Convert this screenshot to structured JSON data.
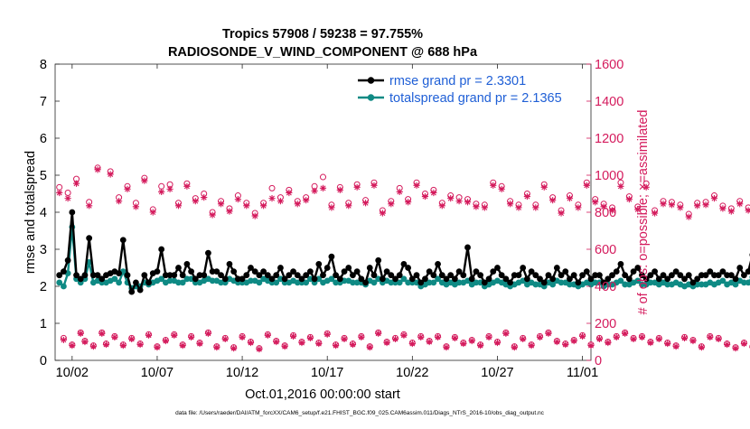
{
  "chart_data": {
    "type": "line",
    "title_line1": "Tropics 57908 / 59238 = 97.755%",
    "title_line2": "RADIOSONDE_V_WIND_COMPONENT @ 688 hPa",
    "xlabel": "Oct.01,2016 00:00:00 start",
    "ylabel_left": "rmse and totalspread",
    "ylabel_right": "# of obs: o=possible; ×=assimilated",
    "footer": "data file: /Users/raeder/DAI/ATM_forcXX/CAM6_setup/f.e21.FHIST_BGC.f09_025.CAM6assim.011/Diags_NTrS_2016-10/obs_diag_output.nc",
    "xlim": [
      0,
      31.5
    ],
    "ylim_left": [
      0,
      8
    ],
    "ylim_right": [
      0,
      1600
    ],
    "x_ticks": [
      {
        "x": 1,
        "label": "10/02"
      },
      {
        "x": 6,
        "label": "10/07"
      },
      {
        "x": 11,
        "label": "10/12"
      },
      {
        "x": 16,
        "label": "10/17"
      },
      {
        "x": 21,
        "label": "10/22"
      },
      {
        "x": 26,
        "label": "10/27"
      },
      {
        "x": 31,
        "label": "11/01"
      }
    ],
    "y_ticks_left": [
      0,
      1,
      2,
      3,
      4,
      5,
      6,
      7,
      8
    ],
    "y_ticks_right": [
      0,
      200,
      400,
      600,
      800,
      1000,
      1200,
      1400,
      1600
    ],
    "colors": {
      "rmse": "#000000",
      "spread": "#0f8a84",
      "obs": "#d41a5c",
      "legend_text": "#1f5fd6"
    },
    "legend": [
      {
        "name": "rmse",
        "label": "rmse grand pr = 2.3301"
      },
      {
        "name": "spread",
        "label": "totalspread grand pr = 2.1365"
      }
    ],
    "x_start": 0.25,
    "x_step": 0.25,
    "series": [
      {
        "name": "rmse",
        "values": [
          2.3,
          2.4,
          2.7,
          4.0,
          2.3,
          2.2,
          2.3,
          3.3,
          2.3,
          2.3,
          2.2,
          2.3,
          2.35,
          2.4,
          2.35,
          3.25,
          2.3,
          1.85,
          2.1,
          1.9,
          2.3,
          2.1,
          2.35,
          2.4,
          3.0,
          2.3,
          2.3,
          2.3,
          2.5,
          2.3,
          2.6,
          2.4,
          2.2,
          2.3,
          2.3,
          2.9,
          2.4,
          2.4,
          2.3,
          2.2,
          2.6,
          2.4,
          2.2,
          2.2,
          2.3,
          2.5,
          2.4,
          2.3,
          2.4,
          2.3,
          2.2,
          2.3,
          2.5,
          2.2,
          2.3,
          2.4,
          2.3,
          2.2,
          2.3,
          2.4,
          2.2,
          2.6,
          2.3,
          2.5,
          2.8,
          2.3,
          2.2,
          2.4,
          2.5,
          2.3,
          2.4,
          2.2,
          2.1,
          2.5,
          2.3,
          2.7,
          2.2,
          2.4,
          2.3,
          2.2,
          2.3,
          2.6,
          2.5,
          2.2,
          2.3,
          2.1,
          2.2,
          2.4,
          2.3,
          2.6,
          2.3,
          2.2,
          2.3,
          2.2,
          2.4,
          2.3,
          3.05,
          2.2,
          2.4,
          2.3,
          2.1,
          2.2,
          2.4,
          2.5,
          2.3,
          2.2,
          2.1,
          2.3,
          2.3,
          2.5,
          2.2,
          2.4,
          2.3,
          2.2,
          2.1,
          2.3,
          2.2,
          2.5,
          2.3,
          2.4,
          2.2,
          2.3,
          2.1,
          2.3,
          2.4,
          2.2,
          2.3,
          2.3,
          2.1,
          2.2,
          2.3,
          2.4,
          2.6,
          2.3,
          2.2,
          2.4,
          2.5,
          2.3,
          2.2,
          2.3,
          2.4,
          2.2,
          2.3,
          2.2,
          2.3,
          2.4,
          2.3,
          2.2,
          2.3,
          2.1,
          2.2,
          2.3,
          2.3,
          2.4,
          2.3,
          2.3,
          2.4,
          2.3,
          2.3,
          2.2,
          2.5,
          2.3,
          2.4,
          2.85,
          2.4,
          2.3,
          2.4,
          2.8,
          2.2,
          2.1,
          2.9
        ]
      },
      {
        "name": "spread",
        "values": [
          2.1,
          2.0,
          2.35,
          3.6,
          2.2,
          2.1,
          2.2,
          2.65,
          2.1,
          2.15,
          2.1,
          2.1,
          2.15,
          2.2,
          2.1,
          2.4,
          2.1,
          1.95,
          2.0,
          2.0,
          2.1,
          2.05,
          2.1,
          2.15,
          2.2,
          2.1,
          2.15,
          2.15,
          2.1,
          2.1,
          2.2,
          2.2,
          2.1,
          2.1,
          2.15,
          2.2,
          2.15,
          2.15,
          2.1,
          2.1,
          2.2,
          2.15,
          2.1,
          2.1,
          2.1,
          2.15,
          2.15,
          2.1,
          2.2,
          2.15,
          2.1,
          2.1,
          2.2,
          2.1,
          2.1,
          2.15,
          2.1,
          2.1,
          2.1,
          2.2,
          2.1,
          2.2,
          2.1,
          2.15,
          2.2,
          2.1,
          2.1,
          2.15,
          2.15,
          2.1,
          2.1,
          2.1,
          2.05,
          2.15,
          2.1,
          2.2,
          2.1,
          2.15,
          2.1,
          2.1,
          2.1,
          2.2,
          2.1,
          2.1,
          2.1,
          2.0,
          2.05,
          2.1,
          2.1,
          2.2,
          2.1,
          2.05,
          2.1,
          2.05,
          2.1,
          2.1,
          2.15,
          2.05,
          2.1,
          2.1,
          2.0,
          2.05,
          2.1,
          2.15,
          2.1,
          2.05,
          2.0,
          2.05,
          2.1,
          2.15,
          2.05,
          2.1,
          2.05,
          2.05,
          2.0,
          2.1,
          2.05,
          2.15,
          2.1,
          2.1,
          2.05,
          2.05,
          2.0,
          2.05,
          2.1,
          2.05,
          2.1,
          2.1,
          2.0,
          2.05,
          2.05,
          2.1,
          2.15,
          2.05,
          2.05,
          2.1,
          2.15,
          2.05,
          2.05,
          2.1,
          2.1,
          2.05,
          2.1,
          2.05,
          2.05,
          2.1,
          2.05,
          2.0,
          2.05,
          2.0,
          2.05,
          2.05,
          2.05,
          2.1,
          2.05,
          2.1,
          2.15,
          2.05,
          2.1,
          2.05,
          2.15,
          2.1,
          2.1,
          2.25,
          2.15,
          2.1,
          2.1,
          2.15,
          2.05,
          2.0,
          2.0
        ]
      },
      {
        "name": "obs_possible",
        "values": [
          935,
          120,
          905,
          85,
          980,
          150,
          105,
          855,
          80,
          1040,
          150,
          90,
          1020,
          130,
          880,
          85,
          940,
          120,
          850,
          90,
          985,
          140,
          815,
          75,
          940,
          110,
          950,
          140,
          850,
          85,
          955,
          130,
          875,
          95,
          900,
          150,
          800,
          75,
          860,
          120,
          820,
          70,
          890,
          130,
          850,
          100,
          795,
          65,
          850,
          140,
          930,
          105,
          880,
          80,
          920,
          135,
          860,
          100,
          880,
          125,
          940,
          95,
          990,
          145,
          840,
          85,
          935,
          120,
          850,
          90,
          950,
          130,
          865,
          75,
          960,
          150,
          810,
          100,
          860,
          120,
          930,
          140,
          870,
          95,
          960,
          130,
          900,
          105,
          920,
          130,
          850,
          75,
          890,
          125,
          880,
          95,
          870,
          110,
          845,
          85,
          840,
          130,
          960,
          100,
          940,
          150,
          860,
          75,
          840,
          120,
          900,
          85,
          840,
          130,
          950,
          150,
          880,
          105,
          810,
          90,
          890,
          110,
          840,
          135,
          960,
          85,
          870,
          120,
          845,
          100,
          825,
          130,
          960,
          150,
          885,
          120,
          830,
          130,
          955,
          100,
          810,
          120,
          860,
          95,
          855,
          80,
          840,
          125,
          790,
          110,
          850,
          75,
          855,
          130,
          890,
          120,
          835,
          90,
          820,
          70,
          860,
          95,
          825,
          75,
          830,
          125,
          855,
          80,
          870,
          120
        ]
      },
      {
        "name": "obs_assimilated",
        "values": [
          905,
          110,
          875,
          80,
          955,
          145,
          100,
          835,
          75,
          1030,
          145,
          85,
          1005,
          125,
          860,
          80,
          925,
          115,
          830,
          85,
          970,
          135,
          800,
          70,
          910,
          105,
          925,
          135,
          835,
          80,
          940,
          125,
          860,
          90,
          880,
          145,
          785,
          70,
          845,
          115,
          805,
          65,
          870,
          125,
          835,
          95,
          780,
          60,
          835,
          135,
          875,
          100,
          860,
          75,
          905,
          130,
          845,
          95,
          865,
          120,
          915,
          90,
          930,
          140,
          825,
          80,
          920,
          115,
          835,
          85,
          935,
          125,
          850,
          70,
          945,
          145,
          795,
          95,
          845,
          115,
          910,
          135,
          855,
          90,
          945,
          125,
          885,
          100,
          905,
          125,
          835,
          70,
          875,
          120,
          860,
          90,
          855,
          105,
          830,
          80,
          825,
          125,
          945,
          95,
          925,
          145,
          845,
          70,
          825,
          115,
          885,
          80,
          825,
          125,
          935,
          145,
          865,
          100,
          795,
          85,
          875,
          105,
          825,
          130,
          945,
          80,
          855,
          115,
          830,
          95,
          810,
          125,
          940,
          145,
          870,
          115,
          815,
          125,
          935,
          95,
          795,
          115,
          845,
          90,
          840,
          75,
          825,
          120,
          775,
          105,
          835,
          70,
          840,
          125,
          875,
          115,
          820,
          85,
          805,
          65,
          845,
          90,
          810,
          70,
          815,
          120,
          840,
          75,
          855,
          115
        ]
      }
    ]
  }
}
